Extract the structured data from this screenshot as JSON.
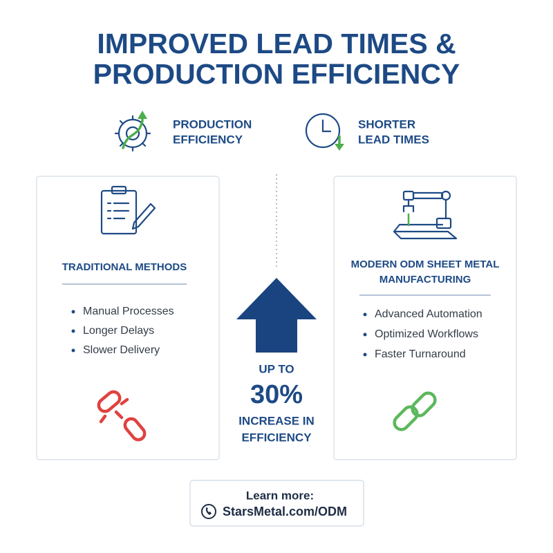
{
  "title": {
    "lines": [
      "IMPROVED LEAD TIMES &",
      "PRODUCTION EFFICIENCY"
    ]
  },
  "badges": [
    {
      "lines": [
        "PRODUCTION",
        "EFFICIENCY"
      ]
    },
    {
      "lines": [
        "SHORTER",
        "LEAD TIMES"
      ]
    }
  ],
  "cards": [
    {
      "title": {
        "lines": [
          "TRADITIONAL METHODS"
        ]
      },
      "items": [
        "Manual Processes",
        "Longer Delays",
        "Slower Delivery"
      ]
    },
    {
      "title": {
        "lines": [
          "MODERN ODM SHEET METAL",
          "MANUFACTURING"
        ]
      },
      "items": [
        "Advanced Automation",
        "Optimized Workflows",
        "Faster Turnaround"
      ]
    }
  ],
  "highlight": {
    "lines": [
      "UP TO",
      "30%",
      "INCREASE IN",
      "EFFICIENCY"
    ]
  },
  "footer": {
    "label": "Learn more:",
    "link": "StarsMetal.com/ODM"
  }
}
